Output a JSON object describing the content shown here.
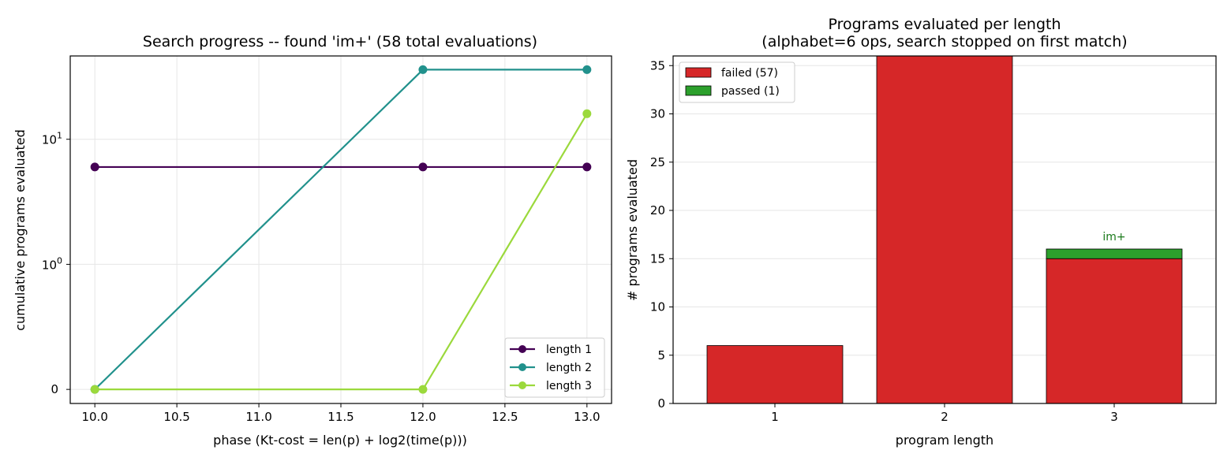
{
  "chart_data": [
    {
      "type": "line",
      "title": "Search progress -- found 'im+'  (58 total evaluations)",
      "xlabel": "phase  (Kt-cost = len(p) + log2(time(p)))",
      "ylabel": "cumulative programs evaluated",
      "yscale": "symlog",
      "x": [
        10.0,
        12.0,
        13.0
      ],
      "xticks": [
        "10.0",
        "10.5",
        "11.0",
        "11.5",
        "12.0",
        "12.5",
        "13.0"
      ],
      "yticks": [
        "0",
        "10^0",
        "10^1"
      ],
      "grid": true,
      "legend_position": "lower-right",
      "series": [
        {
          "name": "length 1",
          "color": "#440154",
          "values": [
            6,
            6,
            6
          ]
        },
        {
          "name": "length 2",
          "color": "#21918c",
          "values": [
            0,
            36,
            36
          ]
        },
        {
          "name": "length 3",
          "color": "#9bd93c",
          "values": [
            0,
            0,
            16
          ]
        }
      ]
    },
    {
      "type": "bar",
      "title": "Programs evaluated per length",
      "subtitle": "(alphabet=6 ops, search stopped on first match)",
      "xlabel": "program length",
      "ylabel": "# programs evaluated",
      "categories": [
        "1",
        "2",
        "3"
      ],
      "ylim": [
        0,
        36
      ],
      "yticks": [
        "0",
        "5",
        "10",
        "15",
        "20",
        "25",
        "30",
        "35"
      ],
      "grid": true,
      "legend_position": "top-left",
      "stacked": true,
      "series": [
        {
          "name": "failed (57)",
          "color": "#d62728",
          "values": [
            6,
            36,
            15
          ]
        },
        {
          "name": "passed (1)",
          "color": "#2ca02c",
          "values": [
            0,
            0,
            1
          ]
        }
      ],
      "annotations": [
        {
          "category": "3",
          "text": "im+",
          "color": "#1a7a1a"
        }
      ]
    }
  ]
}
